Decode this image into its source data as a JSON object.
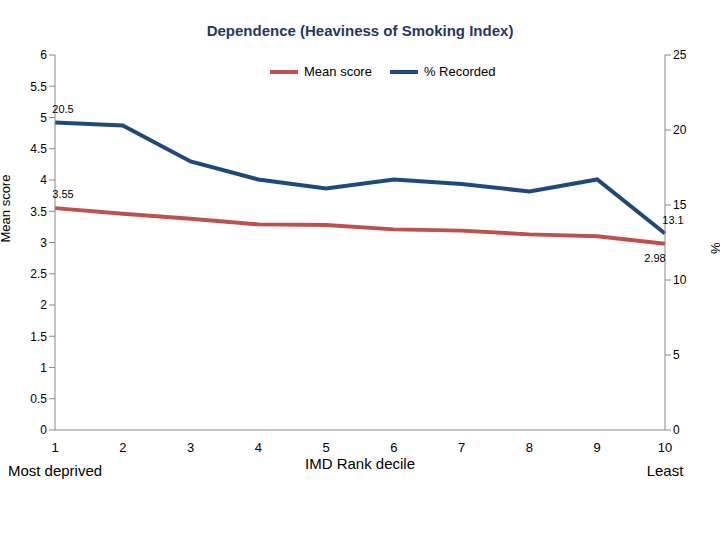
{
  "chart_data": {
    "type": "line",
    "title": "Dependence (Heaviness of Smoking Index)",
    "x_label": "IMD Rank decile",
    "y_label": "Mean score",
    "y2_label": "%",
    "categories": [
      "1",
      "2",
      "3",
      "4",
      "5",
      "6",
      "7",
      "8",
      "9",
      "10"
    ],
    "category_notes": [
      "Most deprived",
      null,
      null,
      null,
      null,
      null,
      null,
      null,
      null,
      "Least"
    ],
    "ylim": [
      0,
      6
    ],
    "yticks": [
      0,
      0.5,
      1,
      1.5,
      2,
      2.5,
      3,
      3.5,
      4,
      4.5,
      5,
      5.5,
      6
    ],
    "y2lim": [
      0,
      25
    ],
    "y2ticks": [
      0,
      5,
      10,
      15,
      20,
      25
    ],
    "grid": false,
    "legend": "top",
    "series": [
      {
        "name": "Mean score",
        "color": "#c0504d",
        "values": [
          3.55,
          3.46,
          3.38,
          3.29,
          3.28,
          3.21,
          3.19,
          3.13,
          3.1,
          2.98
        ],
        "value_labels": [
          "3.55",
          null,
          null,
          null,
          null,
          null,
          null,
          null,
          null,
          "2.98"
        ]
      },
      {
        "name": "% Recorded",
        "color": "#1f497d",
        "axis": "y2",
        "values": [
          20.5,
          20.3,
          17.9,
          16.7,
          16.1,
          16.7,
          16.4,
          15.9,
          16.7,
          13.1
        ],
        "value_labels": [
          "20.5",
          null,
          null,
          null,
          null,
          null,
          null,
          null,
          null,
          "13.1"
        ]
      }
    ]
  }
}
